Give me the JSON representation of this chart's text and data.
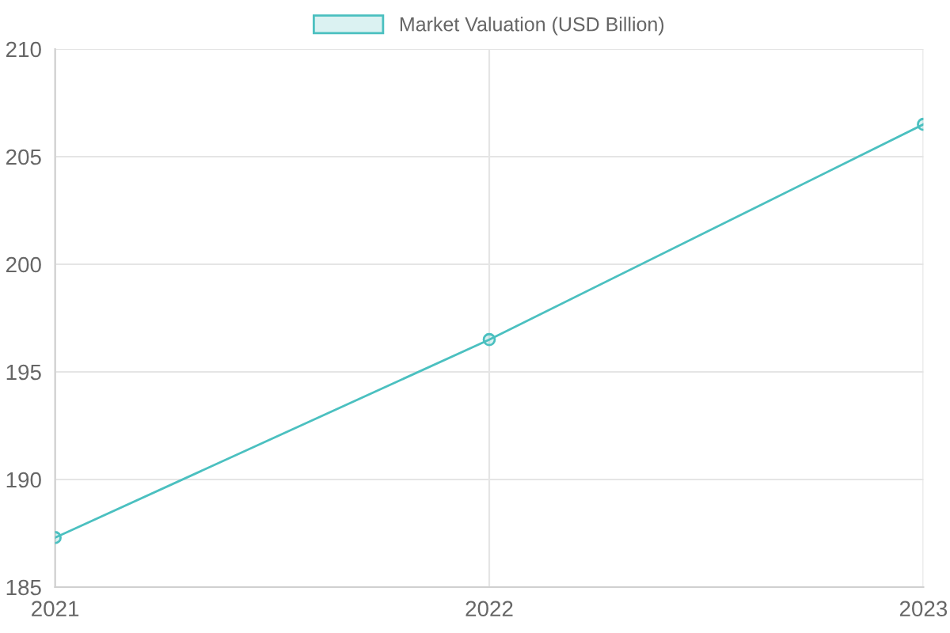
{
  "chart_data": {
    "type": "line",
    "categories": [
      "2021",
      "2022",
      "2023"
    ],
    "series": [
      {
        "name": "Market Valuation (USD Billion)",
        "color": "#4bc0c0",
        "values": [
          187.3,
          196.5,
          206.5
        ]
      }
    ],
    "ylim": [
      185,
      210
    ],
    "yticks": [
      185,
      190,
      195,
      200,
      205,
      210
    ],
    "grid": true,
    "legend": "top",
    "marker": "circle",
    "line_style": "solid"
  }
}
